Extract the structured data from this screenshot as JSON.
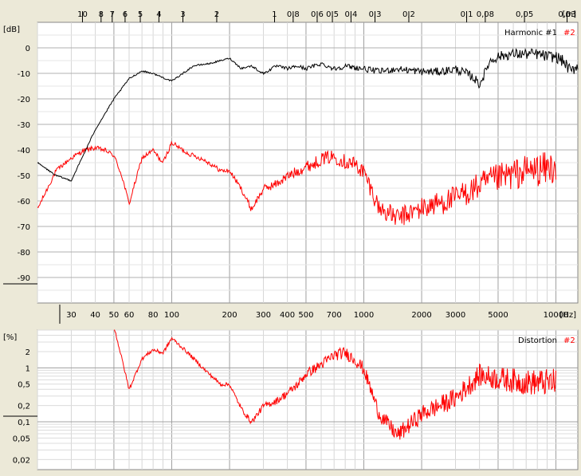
{
  "chart_data": [
    {
      "type": "line",
      "name": "harmonics",
      "ylabel": "[dB]",
      "xlabel": "[Hz]",
      "top_axis_label": "[m]",
      "xscale": "log",
      "xlim": [
        20,
        13000
      ],
      "ylim": [
        -100,
        10
      ],
      "x_ticks": [
        30,
        40,
        50,
        60,
        80,
        100,
        200,
        300,
        400,
        500,
        700,
        1000,
        2000,
        3000,
        5000,
        10000
      ],
      "x_tick_labels": [
        "30",
        "40",
        "50",
        "60",
        "80",
        "100",
        "200",
        "300",
        "400",
        "500",
        "700",
        "1000",
        "2000",
        "3000",
        "5000",
        "10000"
      ],
      "y_ticks": [
        0,
        -10,
        -20,
        -30,
        -40,
        -50,
        -60,
        -70,
        -80,
        -90
      ],
      "y_tick_labels": [
        "0",
        "-10",
        "-20",
        "-30",
        "-40",
        "-50",
        "-60",
        "-70",
        "-80",
        "-90"
      ],
      "top_ticks_m": [
        "10",
        "8",
        "7",
        "6",
        "5",
        "4",
        "3",
        "2",
        "1",
        "0,8",
        "0,6",
        "0,5",
        "0,4",
        "0,3",
        "0,2",
        "0,1",
        "0,08",
        "0,05",
        "0,03"
      ],
      "legend": {
        "placement": "top-right",
        "text": "Harmonic #1",
        "extra": "#2"
      },
      "grid": true,
      "series": [
        {
          "name": "Harmonic #1",
          "color": "#000000",
          "x": [
            20,
            25,
            30,
            40,
            50,
            60,
            70,
            80,
            100,
            130,
            160,
            200,
            230,
            260,
            300,
            350,
            400,
            450,
            500,
            600,
            700,
            800,
            1000,
            1200,
            1500,
            2000,
            2500,
            3000,
            3500,
            3800,
            4000,
            4300,
            4500,
            5000,
            6000,
            7000,
            8000,
            9000,
            10000,
            11000,
            12000,
            13000
          ],
          "y": [
            -45,
            -50,
            -52,
            -32,
            -20,
            -12,
            -9,
            -10,
            -13,
            -7,
            -6,
            -4,
            -8,
            -7,
            -10,
            -7,
            -8,
            -7,
            -8,
            -6,
            -8,
            -7,
            -8,
            -9,
            -8,
            -9,
            -9,
            -8,
            -10,
            -12,
            -14,
            -9,
            -5,
            -3,
            -2,
            -2,
            -2,
            -3,
            -3,
            -5,
            -9,
            -6
          ],
          "noise": 2
        },
        {
          "name": "#2",
          "color": "#ff0000",
          "x": [
            20,
            25,
            30,
            35,
            40,
            45,
            50,
            55,
            60,
            70,
            80,
            90,
            100,
            120,
            150,
            180,
            200,
            230,
            260,
            300,
            350,
            400,
            450,
            500,
            550,
            600,
            700,
            800,
            900,
            1000,
            1200,
            1500,
            2000,
            3000,
            4000,
            5000,
            7000,
            9000,
            10000
          ],
          "y": [
            -63,
            -48,
            -43,
            -40,
            -39,
            -40,
            -42,
            -50,
            -61,
            -43,
            -40,
            -45,
            -37,
            -41,
            -44,
            -48,
            -48,
            -55,
            -63,
            -55,
            -53,
            -50,
            -48,
            -46,
            -45,
            -43,
            -42,
            -44,
            -45,
            -48,
            -62,
            -66,
            -62,
            -58,
            -53,
            -50,
            -47,
            -46,
            -45
          ],
          "noise": 6
        }
      ]
    },
    {
      "type": "line",
      "name": "distortion",
      "ylabel": "[%]",
      "xscale": "log",
      "yscale": "log",
      "xlim": [
        20,
        13000
      ],
      "ylim": [
        0.013,
        5
      ],
      "y_ticks": [
        2,
        1,
        0.5,
        0.2,
        0.1,
        0.05,
        0.02
      ],
      "y_tick_labels": [
        "2",
        "1",
        "0,5",
        "0,2",
        "0,1",
        "0,05",
        "0,02"
      ],
      "legend": {
        "placement": "top-right",
        "text": "Distortion",
        "extra": "#2"
      },
      "grid": true,
      "series": [
        {
          "name": "#2",
          "color": "#ff0000",
          "x": [
            50,
            55,
            60,
            70,
            80,
            90,
            100,
            120,
            150,
            180,
            200,
            230,
            260,
            300,
            350,
            400,
            450,
            500,
            600,
            700,
            800,
            900,
            1000,
            1200,
            1500,
            2000,
            3000,
            4000,
            5000,
            7000,
            9000,
            10000
          ],
          "y": [
            6,
            1.5,
            0.4,
            1.5,
            2.2,
            1.9,
            3.6,
            2,
            0.9,
            0.5,
            0.5,
            0.18,
            0.1,
            0.2,
            0.25,
            0.35,
            0.5,
            0.8,
            1.2,
            1.8,
            2,
            1.5,
            1,
            0.15,
            0.06,
            0.15,
            0.3,
            0.8,
            0.7,
            0.6,
            0.6,
            0.6
          ],
          "noise": 0.45
        }
      ]
    }
  ]
}
